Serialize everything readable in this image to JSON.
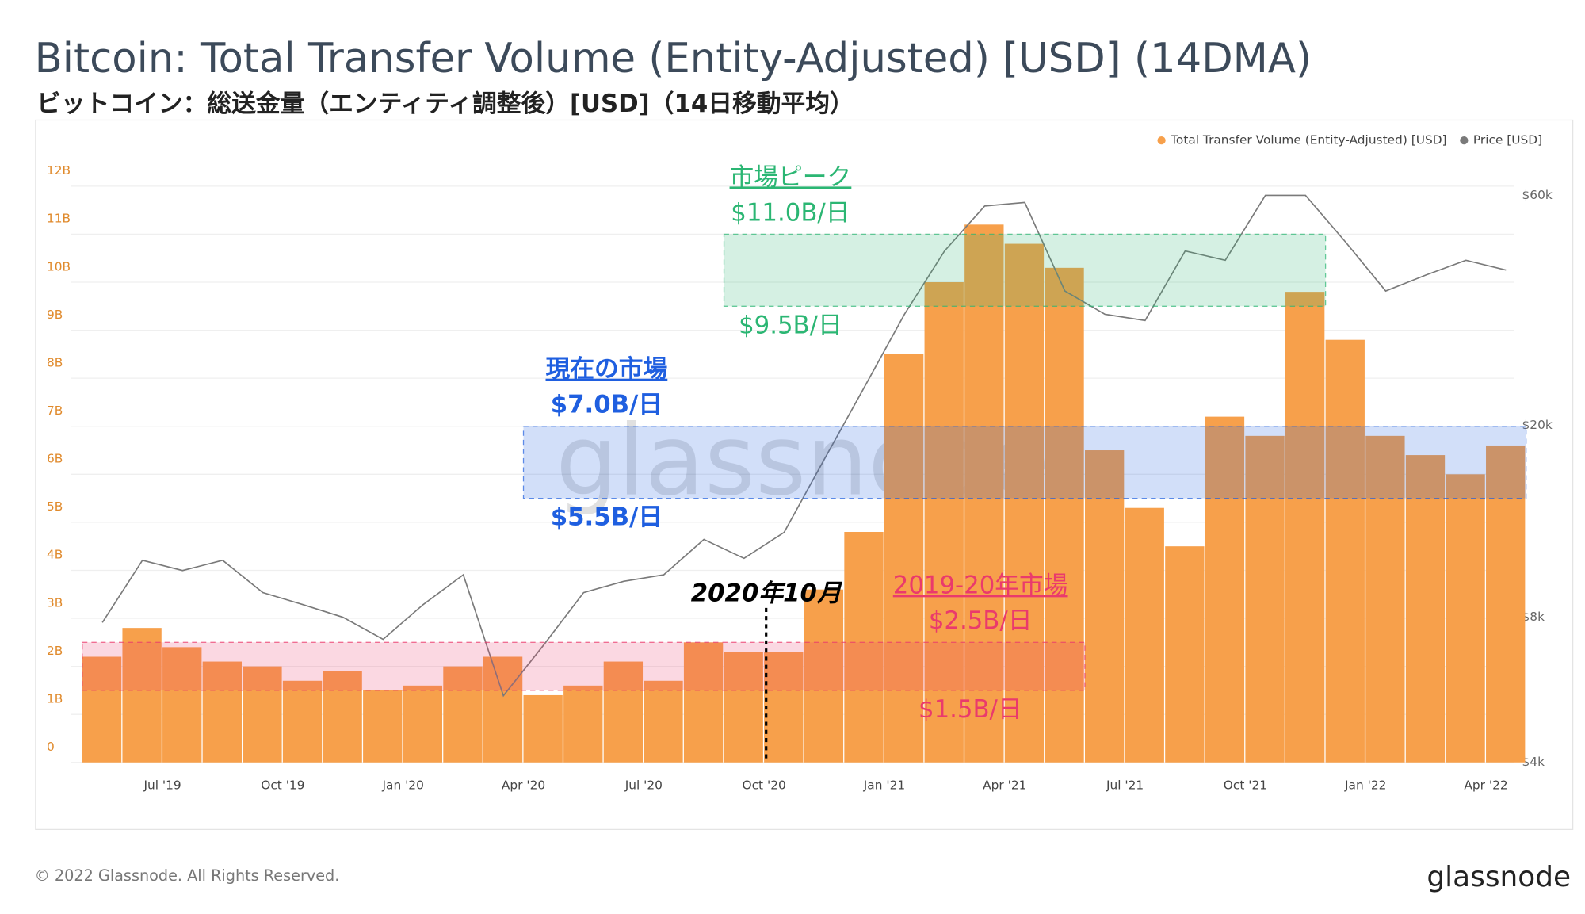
{
  "chart_data": {
    "type": "bar",
    "title": "Bitcoin: Total Transfer Volume (Entity-Adjusted) [USD] (14DMA)",
    "subtitle": "ビットコイン：総送金量（エンティティ調整後）[USD]（14日移動平均）",
    "watermark": "glassnode",
    "footer": "© 2022 Glassnode. All Rights Reserved.",
    "logo": "glassnode",
    "legend_position": "top-right",
    "x": [
      "2019-05",
      "2019-06",
      "2019-07",
      "2019-08",
      "2019-09",
      "2019-10",
      "2019-11",
      "2019-12",
      "2020-01",
      "2020-02",
      "2020-03",
      "2020-04",
      "2020-05",
      "2020-06",
      "2020-07",
      "2020-08",
      "2020-09",
      "2020-10",
      "2020-11",
      "2020-12",
      "2021-01",
      "2021-02",
      "2021-03",
      "2021-04",
      "2021-05",
      "2021-06",
      "2021-07",
      "2021-08",
      "2021-09",
      "2021-10",
      "2021-11",
      "2021-12",
      "2022-01",
      "2022-02",
      "2022-03",
      "2022-04"
    ],
    "xlim": [
      "2019-05",
      "2022-05"
    ],
    "xticks": [
      {
        "value": "2019-07",
        "label": "Jul '19"
      },
      {
        "value": "2019-10",
        "label": "Oct '19"
      },
      {
        "value": "2020-01",
        "label": "Jan '20"
      },
      {
        "value": "2020-04",
        "label": "Apr '20"
      },
      {
        "value": "2020-07",
        "label": "Jul '20"
      },
      {
        "value": "2020-10",
        "label": "Oct '20"
      },
      {
        "value": "2021-01",
        "label": "Jan '21"
      },
      {
        "value": "2021-04",
        "label": "Apr '21"
      },
      {
        "value": "2021-07",
        "label": "Jul '21"
      },
      {
        "value": "2021-10",
        "label": "Oct '21"
      },
      {
        "value": "2022-01",
        "label": "Jan '22"
      },
      {
        "value": "2022-04",
        "label": "Apr '22"
      }
    ],
    "ylim": [
      0,
      12.5
    ],
    "yticks": [
      0,
      {
        "value": 1,
        "label": "1B"
      },
      {
        "value": 2,
        "label": "2B"
      },
      {
        "value": 3,
        "label": "3B"
      },
      {
        "value": 4,
        "label": "4B"
      },
      {
        "value": 5,
        "label": "5B"
      },
      {
        "value": 6,
        "label": "6B"
      },
      {
        "value": 7,
        "label": "7B"
      },
      {
        "value": 8,
        "label": "8B"
      },
      {
        "value": 9,
        "label": "9B"
      },
      {
        "value": 10,
        "label": "10B"
      },
      {
        "value": 11,
        "label": "11B"
      },
      {
        "value": 12,
        "label": "12B"
      }
    ],
    "y2lim": [
      4000,
      70300
    ],
    "y2_log": true,
    "y2ticks": [
      {
        "value": 4000,
        "label": "$4k"
      },
      {
        "value": 8000,
        "label": "$8k"
      },
      {
        "value": 20000,
        "label": "$20k"
      },
      {
        "value": 60000,
        "label": "$60k"
      }
    ],
    "grid": true,
    "series": [
      {
        "name": "Total Transfer Volume (Entity-Adjusted) [USD]",
        "color": "#f7a04b",
        "type": "bar",
        "values": [
          2.2,
          2.8,
          2.4,
          2.1,
          2.0,
          1.7,
          1.9,
          1.5,
          1.6,
          2.0,
          2.2,
          1.4,
          1.6,
          2.1,
          1.7,
          2.5,
          2.3,
          2.3,
          3.6,
          4.8,
          8.5,
          10.0,
          11.2,
          10.8,
          10.3,
          6.5,
          5.3,
          4.5,
          7.2,
          6.8,
          9.8,
          8.8,
          6.8,
          6.4,
          6.0,
          6.6
        ]
      },
      {
        "name": "Price [USD]",
        "color": "#7a7a7a",
        "type": "line",
        "axis": "y2",
        "values": [
          7800,
          10500,
          10000,
          10500,
          9000,
          8500,
          8000,
          7200,
          8500,
          9800,
          5500,
          7000,
          9000,
          9500,
          9800,
          11600,
          10600,
          12000,
          17000,
          24000,
          34000,
          46000,
          57000,
          58000,
          38000,
          34000,
          33000,
          46000,
          44000,
          60000,
          60000,
          48000,
          38000,
          41000,
          44000,
          42000
        ]
      }
    ],
    "bands": [
      {
        "label": "市場ピーク",
        "low": 9.5,
        "high": 11.0,
        "low_label": "$9.5B/日",
        "high_label": "$11.0B/日",
        "start": "2020-09",
        "end": "2021-12",
        "color": "#2bb673"
      },
      {
        "label": "現在の市場",
        "low": 5.5,
        "high": 7.0,
        "low_label": "$5.5B/日",
        "high_label": "$7.0B/日",
        "start": "2020-04",
        "end": "2022-05",
        "color": "#1f5fe0"
      },
      {
        "label": "2019-20年市場",
        "low": 1.5,
        "high": 2.5,
        "low_label": "$1.5B/日",
        "high_label": "$2.5B/日",
        "start": "2019-05",
        "end": "2021-06",
        "color": "#ea3a6c"
      }
    ],
    "annotations": [
      {
        "text": "2020年10月",
        "x": "2020-10"
      }
    ]
  }
}
